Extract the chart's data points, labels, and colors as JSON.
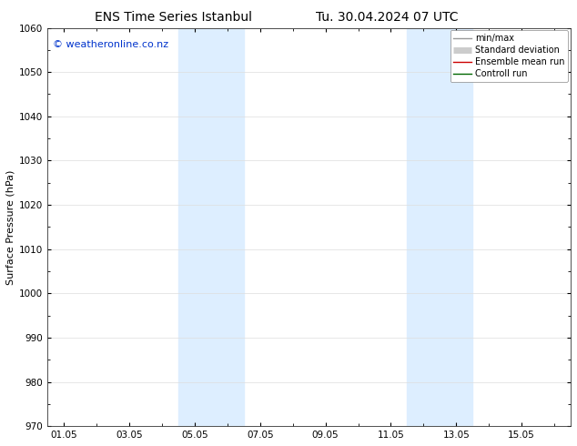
{
  "title": "ENS Time Series Istanbul",
  "title2": "Tu. 30.04.2024 07 UTC",
  "ylabel": "Surface Pressure (hPa)",
  "ylim": [
    970,
    1060
  ],
  "yticks": [
    970,
    980,
    990,
    1000,
    1010,
    1020,
    1030,
    1040,
    1050,
    1060
  ],
  "xtick_labels": [
    "01.05",
    "03.05",
    "05.05",
    "07.05",
    "09.05",
    "11.05",
    "13.05",
    "15.05"
  ],
  "xtick_positions": [
    0,
    2,
    4,
    6,
    8,
    10,
    12,
    14
  ],
  "xlim": [
    -0.5,
    15.5
  ],
  "shaded_bands": [
    {
      "x_start": 3.5,
      "x_end": 5.5
    },
    {
      "x_start": 10.5,
      "x_end": 12.5
    }
  ],
  "shaded_color": "#ddeeff",
  "watermark": "© weatheronline.co.nz",
  "watermark_color": "#0033cc",
  "bg_color": "#ffffff",
  "legend_entries": [
    {
      "label": "min/max",
      "color": "#999999",
      "linewidth": 1.0,
      "linestyle": "-"
    },
    {
      "label": "Standard deviation",
      "color": "#cccccc",
      "linewidth": 5,
      "linestyle": "-"
    },
    {
      "label": "Ensemble mean run",
      "color": "#cc0000",
      "linewidth": 1.0,
      "linestyle": "-"
    },
    {
      "label": "Controll run",
      "color": "#006600",
      "linewidth": 1.0,
      "linestyle": "-"
    }
  ],
  "font_size_title": 10,
  "font_size_axis": 8,
  "font_size_tick": 7.5,
  "font_size_watermark": 8,
  "font_size_legend": 7
}
